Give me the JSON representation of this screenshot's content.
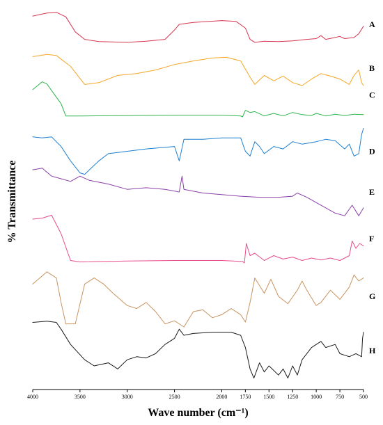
{
  "chart_data": {
    "type": "line",
    "title": "",
    "xlabel": "Wave number (cm⁻¹)",
    "ylabel": "% Transmittance",
    "xlim": [
      4000,
      500
    ],
    "x_reversed": true,
    "xticks": [
      4000,
      3500,
      3000,
      2500,
      2000,
      1750,
      1500,
      1250,
      1000,
      750,
      500
    ],
    "xtick_labels": [
      "4000",
      "3500",
      "3000",
      "2500",
      "2000",
      "1750",
      "1500",
      "1250",
      "1000",
      "750",
      "500"
    ],
    "grid": false,
    "legend": "none",
    "series": [
      {
        "name": "A",
        "color": "#d6344e",
        "points": [
          [
            4000,
            0.72
          ],
          [
            3850,
            0.8
          ],
          [
            3750,
            0.82
          ],
          [
            3650,
            0.7
          ],
          [
            3550,
            0.3
          ],
          [
            3450,
            0.1
          ],
          [
            3300,
            0.04
          ],
          [
            3000,
            0.02
          ],
          [
            2800,
            0.05
          ],
          [
            2600,
            0.1
          ],
          [
            2500,
            0.35
          ],
          [
            2450,
            0.5
          ],
          [
            2300,
            0.55
          ],
          [
            2000,
            0.6
          ],
          [
            1850,
            0.58
          ],
          [
            1750,
            0.4
          ],
          [
            1700,
            0.1
          ],
          [
            1650,
            0.02
          ],
          [
            1550,
            0.05
          ],
          [
            1400,
            0.04
          ],
          [
            1250,
            0.06
          ],
          [
            1100,
            0.1
          ],
          [
            1000,
            0.12
          ],
          [
            950,
            0.2
          ],
          [
            900,
            0.1
          ],
          [
            800,
            0.15
          ],
          [
            750,
            0.18
          ],
          [
            700,
            0.12
          ],
          [
            600,
            0.15
          ],
          [
            550,
            0.25
          ],
          [
            500,
            0.45
          ]
        ]
      },
      {
        "name": "B",
        "color": "#f5a623",
        "points": [
          [
            4000,
            0.82
          ],
          [
            3850,
            0.88
          ],
          [
            3750,
            0.85
          ],
          [
            3600,
            0.55
          ],
          [
            3450,
            0.05
          ],
          [
            3300,
            0.1
          ],
          [
            3100,
            0.3
          ],
          [
            2900,
            0.35
          ],
          [
            2700,
            0.45
          ],
          [
            2500,
            0.6
          ],
          [
            2300,
            0.7
          ],
          [
            2100,
            0.78
          ],
          [
            1950,
            0.8
          ],
          [
            1800,
            0.7
          ],
          [
            1700,
            0.25
          ],
          [
            1650,
            0.05
          ],
          [
            1550,
            0.3
          ],
          [
            1450,
            0.15
          ],
          [
            1350,
            0.28
          ],
          [
            1250,
            0.1
          ],
          [
            1150,
            0.02
          ],
          [
            1050,
            0.2
          ],
          [
            950,
            0.35
          ],
          [
            850,
            0.28
          ],
          [
            750,
            0.2
          ],
          [
            650,
            0.05
          ],
          [
            600,
            0.3
          ],
          [
            550,
            0.45
          ],
          [
            520,
            0.1
          ],
          [
            500,
            0.02
          ]
        ]
      },
      {
        "name": "C",
        "color": "#2db34a",
        "points": [
          [
            4000,
            0.62
          ],
          [
            3900,
            0.8
          ],
          [
            3850,
            0.75
          ],
          [
            3800,
            0.6
          ],
          [
            3700,
            0.3
          ],
          [
            3650,
            0.02
          ],
          [
            3500,
            0.02
          ],
          [
            3000,
            0.03
          ],
          [
            2500,
            0.04
          ],
          [
            2000,
            0.04
          ],
          [
            1800,
            0.02
          ],
          [
            1780,
            0.0
          ],
          [
            1750,
            0.15
          ],
          [
            1700,
            0.1
          ],
          [
            1650,
            0.12
          ],
          [
            1550,
            0.02
          ],
          [
            1450,
            0.08
          ],
          [
            1350,
            0.02
          ],
          [
            1250,
            0.1
          ],
          [
            1150,
            0.05
          ],
          [
            1050,
            0.03
          ],
          [
            1000,
            0.08
          ],
          [
            900,
            0.02
          ],
          [
            800,
            0.06
          ],
          [
            700,
            0.03
          ],
          [
            600,
            0.06
          ],
          [
            500,
            0.05
          ]
        ]
      },
      {
        "name": "D",
        "color": "#1b7fd1",
        "points": [
          [
            4000,
            0.8
          ],
          [
            3900,
            0.78
          ],
          [
            3800,
            0.8
          ],
          [
            3700,
            0.6
          ],
          [
            3600,
            0.3
          ],
          [
            3500,
            0.05
          ],
          [
            3450,
            0.02
          ],
          [
            3300,
            0.3
          ],
          [
            3200,
            0.45
          ],
          [
            3000,
            0.5
          ],
          [
            2800,
            0.55
          ],
          [
            2500,
            0.6
          ],
          [
            2450,
            0.3
          ],
          [
            2400,
            0.75
          ],
          [
            2200,
            0.75
          ],
          [
            2000,
            0.78
          ],
          [
            1800,
            0.78
          ],
          [
            1750,
            0.5
          ],
          [
            1700,
            0.4
          ],
          [
            1650,
            0.7
          ],
          [
            1600,
            0.6
          ],
          [
            1550,
            0.45
          ],
          [
            1450,
            0.6
          ],
          [
            1350,
            0.55
          ],
          [
            1250,
            0.7
          ],
          [
            1150,
            0.65
          ],
          [
            1000,
            0.7
          ],
          [
            900,
            0.75
          ],
          [
            800,
            0.72
          ],
          [
            700,
            0.55
          ],
          [
            650,
            0.65
          ],
          [
            600,
            0.4
          ],
          [
            550,
            0.45
          ],
          [
            520,
            0.85
          ],
          [
            500,
            0.98
          ]
        ]
      },
      {
        "name": "E",
        "color": "#8b3fa8",
        "points": [
          [
            4000,
            0.92
          ],
          [
            3900,
            0.95
          ],
          [
            3800,
            0.8
          ],
          [
            3700,
            0.75
          ],
          [
            3600,
            0.7
          ],
          [
            3500,
            0.8
          ],
          [
            3400,
            0.72
          ],
          [
            3200,
            0.65
          ],
          [
            3000,
            0.55
          ],
          [
            2800,
            0.58
          ],
          [
            2600,
            0.55
          ],
          [
            2450,
            0.5
          ],
          [
            2420,
            0.8
          ],
          [
            2400,
            0.55
          ],
          [
            2200,
            0.48
          ],
          [
            2000,
            0.45
          ],
          [
            1800,
            0.42
          ],
          [
            1600,
            0.4
          ],
          [
            1400,
            0.4
          ],
          [
            1250,
            0.42
          ],
          [
            1200,
            0.48
          ],
          [
            1100,
            0.4
          ],
          [
            1000,
            0.3
          ],
          [
            900,
            0.2
          ],
          [
            800,
            0.1
          ],
          [
            700,
            0.05
          ],
          [
            620,
            0.25
          ],
          [
            550,
            0.05
          ],
          [
            500,
            0.2
          ]
        ]
      },
      {
        "name": "F",
        "color": "#e84b8a",
        "points": [
          [
            4000,
            0.9
          ],
          [
            3900,
            0.92
          ],
          [
            3800,
            0.98
          ],
          [
            3700,
            0.6
          ],
          [
            3600,
            0.05
          ],
          [
            3500,
            0.02
          ],
          [
            3000,
            0.04
          ],
          [
            2500,
            0.05
          ],
          [
            2000,
            0.05
          ],
          [
            1780,
            0.03
          ],
          [
            1760,
            0.0
          ],
          [
            1740,
            0.4
          ],
          [
            1700,
            0.15
          ],
          [
            1650,
            0.2
          ],
          [
            1550,
            0.05
          ],
          [
            1450,
            0.15
          ],
          [
            1350,
            0.08
          ],
          [
            1250,
            0.12
          ],
          [
            1150,
            0.05
          ],
          [
            1050,
            0.1
          ],
          [
            950,
            0.06
          ],
          [
            850,
            0.1
          ],
          [
            750,
            0.05
          ],
          [
            650,
            0.15
          ],
          [
            620,
            0.45
          ],
          [
            580,
            0.3
          ],
          [
            540,
            0.4
          ],
          [
            500,
            0.35
          ]
        ]
      },
      {
        "name": "G",
        "color": "#c8935f",
        "points": [
          [
            4000,
            0.7
          ],
          [
            3850,
            0.9
          ],
          [
            3750,
            0.8
          ],
          [
            3700,
            0.4
          ],
          [
            3650,
            0.05
          ],
          [
            3550,
            0.05
          ],
          [
            3450,
            0.7
          ],
          [
            3350,
            0.8
          ],
          [
            3250,
            0.7
          ],
          [
            3150,
            0.55
          ],
          [
            3000,
            0.35
          ],
          [
            2900,
            0.3
          ],
          [
            2800,
            0.4
          ],
          [
            2700,
            0.25
          ],
          [
            2600,
            0.05
          ],
          [
            2500,
            0.1
          ],
          [
            2400,
            0.0
          ],
          [
            2300,
            0.25
          ],
          [
            2200,
            0.28
          ],
          [
            2100,
            0.15
          ],
          [
            2000,
            0.2
          ],
          [
            1900,
            0.3
          ],
          [
            1800,
            0.2
          ],
          [
            1750,
            0.08
          ],
          [
            1700,
            0.4
          ],
          [
            1650,
            0.8
          ],
          [
            1550,
            0.55
          ],
          [
            1480,
            0.78
          ],
          [
            1400,
            0.5
          ],
          [
            1300,
            0.38
          ],
          [
            1200,
            0.6
          ],
          [
            1150,
            0.75
          ],
          [
            1100,
            0.6
          ],
          [
            1000,
            0.35
          ],
          [
            950,
            0.4
          ],
          [
            850,
            0.6
          ],
          [
            750,
            0.45
          ],
          [
            650,
            0.65
          ],
          [
            600,
            0.85
          ],
          [
            550,
            0.75
          ],
          [
            500,
            0.8
          ]
        ]
      },
      {
        "name": "H",
        "color": "#1a1a1a",
        "points": [
          [
            4000,
            0.96
          ],
          [
            3850,
            0.98
          ],
          [
            3750,
            0.96
          ],
          [
            3700,
            0.85
          ],
          [
            3600,
            0.6
          ],
          [
            3450,
            0.35
          ],
          [
            3350,
            0.25
          ],
          [
            3200,
            0.3
          ],
          [
            3100,
            0.2
          ],
          [
            3000,
            0.35
          ],
          [
            2900,
            0.4
          ],
          [
            2800,
            0.38
          ],
          [
            2700,
            0.45
          ],
          [
            2600,
            0.6
          ],
          [
            2500,
            0.7
          ],
          [
            2450,
            0.85
          ],
          [
            2400,
            0.75
          ],
          [
            2300,
            0.78
          ],
          [
            2100,
            0.8
          ],
          [
            1900,
            0.8
          ],
          [
            1800,
            0.75
          ],
          [
            1750,
            0.55
          ],
          [
            1700,
            0.2
          ],
          [
            1660,
            0.05
          ],
          [
            1600,
            0.3
          ],
          [
            1550,
            0.15
          ],
          [
            1500,
            0.25
          ],
          [
            1400,
            0.1
          ],
          [
            1350,
            0.2
          ],
          [
            1300,
            0.05
          ],
          [
            1250,
            0.25
          ],
          [
            1200,
            0.1
          ],
          [
            1150,
            0.35
          ],
          [
            1050,
            0.55
          ],
          [
            950,
            0.65
          ],
          [
            900,
            0.55
          ],
          [
            800,
            0.6
          ],
          [
            750,
            0.45
          ],
          [
            650,
            0.4
          ],
          [
            580,
            0.45
          ],
          [
            520,
            0.4
          ],
          [
            510,
            0.7
          ],
          [
            500,
            0.8
          ]
        ]
      }
    ]
  }
}
